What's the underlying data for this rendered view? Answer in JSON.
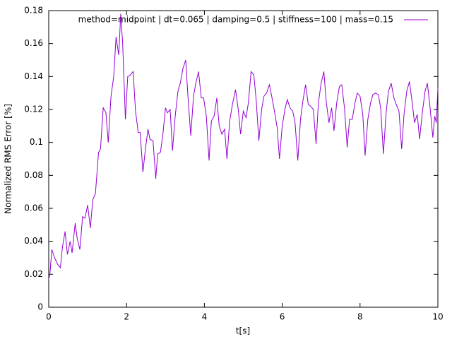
{
  "chart_data": {
    "type": "line",
    "xlabel": "t[s]",
    "ylabel": "Normalized RMS Error [%]",
    "xlim": [
      0,
      10
    ],
    "xticks": [
      0,
      2,
      4,
      6,
      8,
      10
    ],
    "ylim": [
      0,
      0.18
    ],
    "yticks": [
      0,
      0.02,
      0.04,
      0.06,
      0.08,
      0.1,
      0.12,
      0.14,
      0.16,
      0.18
    ],
    "grid": false,
    "legend": "top-right",
    "x": [
      0,
      0.03,
      0.08,
      0.15,
      0.23,
      0.3,
      0.35,
      0.42,
      0.48,
      0.55,
      0.6,
      0.68,
      0.73,
      0.8,
      0.87,
      0.93,
      1.0,
      1.07,
      1.13,
      1.2,
      1.28,
      1.33,
      1.4,
      1.47,
      1.53,
      1.6,
      1.67,
      1.73,
      1.8,
      1.85,
      1.9,
      1.97,
      2.03,
      2.1,
      2.17,
      2.23,
      2.3,
      2.35,
      2.42,
      2.48,
      2.55,
      2.6,
      2.68,
      2.75,
      2.8,
      2.87,
      2.93,
      3.0,
      3.05,
      3.12,
      3.18,
      3.25,
      3.32,
      3.38,
      3.45,
      3.52,
      3.58,
      3.65,
      3.72,
      3.78,
      3.85,
      3.92,
      3.98,
      4.05,
      4.12,
      4.18,
      4.25,
      4.32,
      4.38,
      4.45,
      4.52,
      4.58,
      4.65,
      4.72,
      4.8,
      4.87,
      4.93,
      5.0,
      5.07,
      5.13,
      5.2,
      5.27,
      5.33,
      5.4,
      5.47,
      5.53,
      5.6,
      5.67,
      5.73,
      5.8,
      5.87,
      5.93,
      6.0,
      6.07,
      6.13,
      6.2,
      6.27,
      6.33,
      6.4,
      6.47,
      6.53,
      6.6,
      6.67,
      6.73,
      6.8,
      6.87,
      6.93,
      7.0,
      7.07,
      7.13,
      7.2,
      7.27,
      7.33,
      7.4,
      7.47,
      7.53,
      7.6,
      7.67,
      7.73,
      7.8,
      7.87,
      7.93,
      8.0,
      8.07,
      8.13,
      8.2,
      8.27,
      8.33,
      8.4,
      8.47,
      8.53,
      8.6,
      8.67,
      8.73,
      8.8,
      8.87,
      8.93,
      9.0,
      9.07,
      9.13,
      9.2,
      9.27,
      9.33,
      9.4,
      9.47,
      9.53,
      9.6,
      9.67,
      9.73,
      9.8,
      9.87,
      9.92,
      9.96,
      10.0
    ],
    "series": [
      {
        "name": "method=midpoint | dt=0.065 | damping=0.5 | stiffness=100 | mass=0.15",
        "color": "#9400d3",
        "values": [
          0.017,
          0.02,
          0.035,
          0.03,
          0.026,
          0.024,
          0.036,
          0.046,
          0.032,
          0.04,
          0.033,
          0.051,
          0.042,
          0.035,
          0.055,
          0.054,
          0.062,
          0.048,
          0.065,
          0.069,
          0.094,
          0.096,
          0.121,
          0.118,
          0.1,
          0.128,
          0.14,
          0.164,
          0.153,
          0.178,
          0.16,
          0.114,
          0.14,
          0.141,
          0.143,
          0.119,
          0.106,
          0.106,
          0.082,
          0.095,
          0.108,
          0.102,
          0.101,
          0.078,
          0.093,
          0.094,
          0.104,
          0.121,
          0.118,
          0.12,
          0.095,
          0.116,
          0.131,
          0.136,
          0.145,
          0.15,
          0.127,
          0.104,
          0.128,
          0.136,
          0.143,
          0.127,
          0.127,
          0.116,
          0.089,
          0.113,
          0.116,
          0.127,
          0.11,
          0.105,
          0.108,
          0.09,
          0.113,
          0.123,
          0.132,
          0.12,
          0.105,
          0.119,
          0.115,
          0.124,
          0.143,
          0.141,
          0.126,
          0.101,
          0.12,
          0.128,
          0.13,
          0.135,
          0.128,
          0.119,
          0.109,
          0.09,
          0.11,
          0.12,
          0.126,
          0.121,
          0.119,
          0.112,
          0.089,
          0.114,
          0.125,
          0.135,
          0.123,
          0.122,
          0.12,
          0.099,
          0.124,
          0.136,
          0.143,
          0.125,
          0.112,
          0.121,
          0.107,
          0.124,
          0.134,
          0.135,
          0.121,
          0.097,
          0.114,
          0.114,
          0.124,
          0.13,
          0.128,
          0.117,
          0.092,
          0.114,
          0.124,
          0.129,
          0.13,
          0.129,
          0.121,
          0.093,
          0.118,
          0.131,
          0.136,
          0.127,
          0.123,
          0.119,
          0.096,
          0.117,
          0.131,
          0.137,
          0.126,
          0.112,
          0.117,
          0.102,
          0.118,
          0.131,
          0.136,
          0.121,
          0.103,
          0.116,
          0.112,
          0.133
        ]
      }
    ]
  }
}
